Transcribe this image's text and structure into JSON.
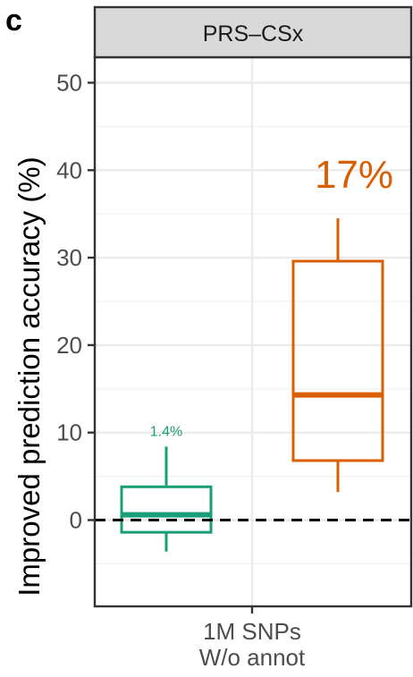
{
  "panel_letter": "c",
  "chart_data": {
    "type": "boxplot",
    "facet_label": "PRS–CSx",
    "ylabel": "Improved prediction accuracy (%)",
    "xlabel": "",
    "ylim": [
      -10,
      53
    ],
    "yticks": [
      0,
      10,
      20,
      30,
      40,
      50
    ],
    "x_category_lines": [
      "1M SNPs",
      "W/o annot"
    ],
    "reference_line": 0,
    "grid": true,
    "boxes": [
      {
        "offset": -0.5,
        "color": "#1b9e77",
        "whisker_low": -3.6,
        "q1": -1.4,
        "median": 0.6,
        "q3": 3.8,
        "whisker_high": 8.4,
        "label": "1.4%",
        "label_y": 9.6,
        "label_size": 16
      },
      {
        "offset": 0.5,
        "color": "#d95f02",
        "whisker_low": 3.2,
        "q1": 6.8,
        "median": 14.3,
        "q3": 29.6,
        "whisker_high": 34.5,
        "label": "17%",
        "label_y": 38.0,
        "label_size": 44
      }
    ]
  }
}
